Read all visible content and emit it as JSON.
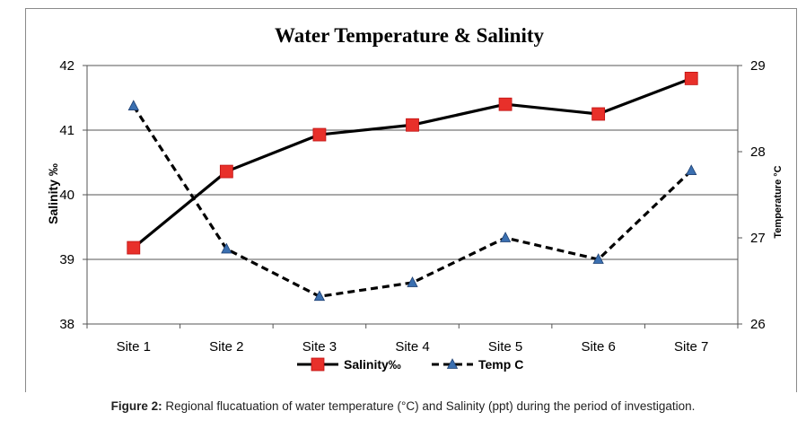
{
  "chart_data": {
    "type": "line",
    "title": "Water Temperature & Salinity",
    "categories": [
      "Site 1",
      "Site 2",
      "Site 3",
      "Site 4",
      "Site 5",
      "Site 6",
      "Site 7"
    ],
    "series": [
      {
        "name": "Salinity‰",
        "axis": "left",
        "values": [
          39.18,
          40.36,
          40.93,
          41.08,
          41.4,
          41.25,
          41.8
        ],
        "color": "#000000",
        "marker_color": "#e8302a",
        "line_style": "solid",
        "marker": "square"
      },
      {
        "name": "Temp C",
        "axis": "right",
        "values": [
          28.53,
          26.87,
          26.32,
          26.48,
          27.0,
          26.75,
          27.78
        ],
        "color": "#000000",
        "marker_color": "#3a6fb0",
        "line_style": "dashed",
        "marker": "triangle"
      }
    ],
    "ylabel": "Salinity ‰",
    "y2label": "Temperature °C",
    "xlabel": "",
    "ylim": [
      38,
      42
    ],
    "y2lim": [
      26,
      29
    ],
    "yticks": [
      "38",
      "39",
      "40",
      "41",
      "42"
    ],
    "y2ticks": [
      "26",
      "27",
      "28",
      "29"
    ],
    "grid": true,
    "legend_position": "bottom"
  },
  "caption": {
    "label": "Figure 2:",
    "text": " Regional flucatuation of water temperature (°C) and Salinity (ppt) during the period of investigation."
  }
}
